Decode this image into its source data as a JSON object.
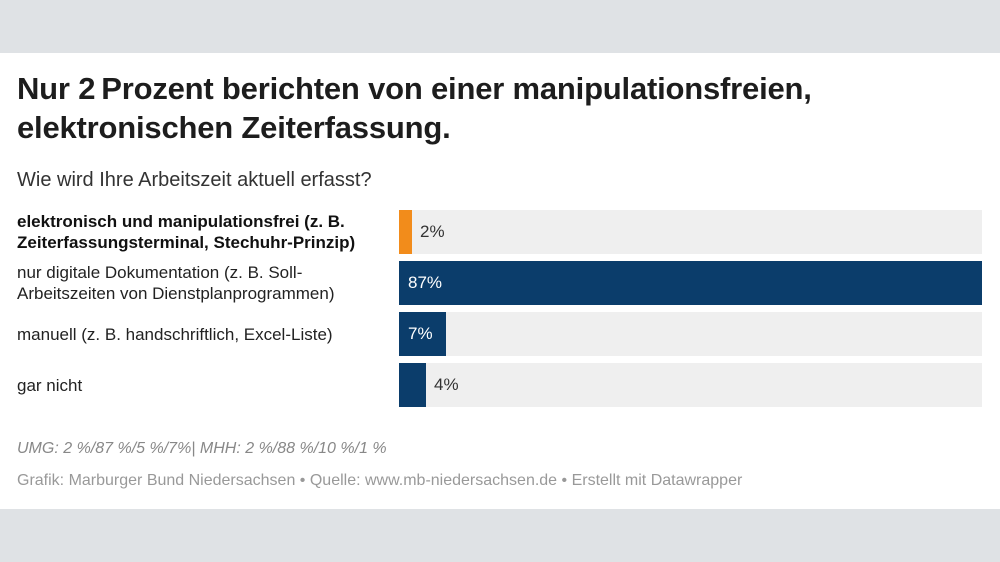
{
  "chart_data": {
    "type": "bar",
    "orientation": "horizontal",
    "title": "Nur 2 Prozent berichten von einer manipulationsfreien, elektronischen Zeiterfassung.",
    "subtitle": "Wie wird Ihre Arbeitszeit aktuell erfasst?",
    "xlim": [
      0,
      87
    ],
    "categories": [
      "elektronisch und manipulationsfrei (z. B. Zeiterfassungsterminal, Stechuhr-Prinzip)",
      "nur digitale Dokumentation (z. B. Soll-Arbeitszeiten von Dienstplanprogrammen)",
      "manuell (z. B. handschriftlich, Excel-Liste)",
      "gar nicht"
    ],
    "values": [
      2,
      87,
      7,
      4
    ],
    "value_labels": [
      "2%",
      "87%",
      "7%",
      "4%"
    ],
    "highlight_index": 0,
    "colors": {
      "highlight": "#f28c1b",
      "default": "#0b3d6b",
      "track": "#efefef"
    },
    "note": "UMG: 2 %/87 %/5 %/7%| MHH: 2 %/88 %/10 %/1 %",
    "credits": "Grafik: Marburger Bund Niedersachsen • Quelle: www.mb-niedersachsen.de • Erstellt mit Datawrapper"
  }
}
